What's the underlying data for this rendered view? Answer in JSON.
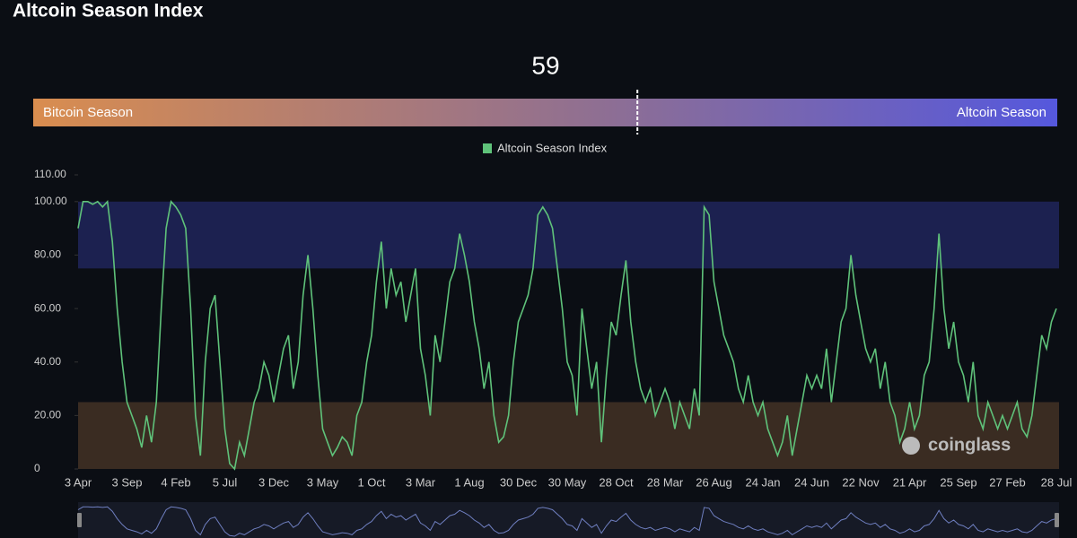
{
  "title": "Altcoin Season Index",
  "gauge": {
    "value": 59,
    "range": [
      0,
      100
    ],
    "left_label": "Bitcoin Season",
    "right_label": "Altcoin Season"
  },
  "watermark": "coinglass",
  "chart_data": {
    "type": "line",
    "categories": [
      "3 Apr",
      null,
      null,
      null,
      null,
      null,
      null,
      null,
      null,
      null,
      "3 Sep",
      null,
      null,
      null,
      null,
      null,
      null,
      null,
      null,
      null,
      "4 Feb",
      null,
      null,
      null,
      null,
      null,
      null,
      null,
      null,
      null,
      "5 Jul",
      null,
      null,
      null,
      null,
      null,
      null,
      null,
      null,
      null,
      "3 Dec",
      null,
      null,
      null,
      null,
      null,
      null,
      null,
      null,
      null,
      "3 May",
      null,
      null,
      null,
      null,
      null,
      null,
      null,
      null,
      null,
      "1 Oct",
      null,
      null,
      null,
      null,
      null,
      null,
      null,
      null,
      null,
      "3 Mar",
      null,
      null,
      null,
      null,
      null,
      null,
      null,
      null,
      null,
      "1 Aug",
      null,
      null,
      null,
      null,
      null,
      null,
      null,
      null,
      null,
      "30 Dec",
      null,
      null,
      null,
      null,
      null,
      null,
      null,
      null,
      null,
      "30 May",
      null,
      null,
      null,
      null,
      null,
      null,
      null,
      null,
      null,
      "28 Oct",
      null,
      null,
      null,
      null,
      null,
      null,
      null,
      null,
      null,
      "28 Mar",
      null,
      null,
      null,
      null,
      null,
      null,
      null,
      null,
      null,
      "26 Aug",
      null,
      null,
      null,
      null,
      null,
      null,
      null,
      null,
      null,
      "24 Jan",
      null,
      null,
      null,
      null,
      null,
      null,
      null,
      null,
      null,
      "24 Jun",
      null,
      null,
      null,
      null,
      null,
      null,
      null,
      null,
      null,
      "22 Nov",
      null,
      null,
      null,
      null,
      null,
      null,
      null,
      null,
      null,
      "21 Apr",
      null,
      null,
      null,
      null,
      null,
      null,
      null,
      null,
      null,
      "25 Sep",
      null,
      null,
      null,
      null,
      null,
      null,
      null,
      null,
      null,
      "27 Feb",
      null,
      null,
      null,
      null,
      null,
      null,
      null,
      null,
      null,
      "28 Jul"
    ],
    "series": [
      {
        "name": "Altcoin Season Index",
        "color": "#5fc27a",
        "values": [
          90,
          100,
          100,
          99,
          100,
          98,
          100,
          85,
          60,
          40,
          25,
          20,
          15,
          8,
          20,
          10,
          25,
          60,
          90,
          100,
          98,
          95,
          90,
          60,
          20,
          5,
          40,
          60,
          65,
          40,
          15,
          2,
          0,
          10,
          5,
          15,
          25,
          30,
          40,
          35,
          25,
          35,
          45,
          50,
          30,
          40,
          65,
          80,
          60,
          35,
          15,
          10,
          5,
          8,
          12,
          10,
          5,
          20,
          25,
          40,
          50,
          70,
          85,
          60,
          75,
          65,
          70,
          55,
          65,
          75,
          45,
          35,
          20,
          50,
          40,
          55,
          70,
          75,
          88,
          80,
          70,
          55,
          45,
          30,
          40,
          20,
          10,
          12,
          20,
          40,
          55,
          60,
          65,
          75,
          95,
          98,
          95,
          90,
          75,
          60,
          40,
          35,
          20,
          60,
          45,
          30,
          40,
          10,
          35,
          55,
          50,
          65,
          78,
          55,
          40,
          30,
          25,
          30,
          20,
          25,
          30,
          25,
          15,
          25,
          20,
          15,
          30,
          20,
          98,
          95,
          70,
          60,
          50,
          45,
          40,
          30,
          25,
          35,
          25,
          20,
          25,
          15,
          10,
          5,
          10,
          20,
          5,
          15,
          25,
          35,
          30,
          35,
          30,
          45,
          25,
          40,
          55,
          60,
          80,
          65,
          55,
          45,
          40,
          45,
          30,
          40,
          25,
          20,
          10,
          15,
          25,
          15,
          20,
          35,
          40,
          60,
          88,
          60,
          45,
          55,
          40,
          35,
          25,
          40,
          20,
          15,
          25,
          20,
          15,
          20,
          15,
          20,
          25,
          15,
          12,
          20,
          35,
          50,
          45,
          55,
          60
        ]
      }
    ],
    "bands": [
      {
        "from": 0,
        "to": 25,
        "color": "#3a2c22"
      },
      {
        "from": 75,
        "to": 100,
        "color": "#1c2150"
      }
    ],
    "ylim": [
      0,
      110
    ],
    "yticks": [
      0,
      {
        "value": 20,
        "label": "20.00"
      },
      {
        "value": 40,
        "label": "40.00"
      },
      {
        "value": 60,
        "label": "60.00"
      },
      {
        "value": 80,
        "label": "80.00"
      },
      {
        "value": 100,
        "label": "100.00"
      },
      {
        "value": 110,
        "label": "110.00"
      }
    ]
  }
}
